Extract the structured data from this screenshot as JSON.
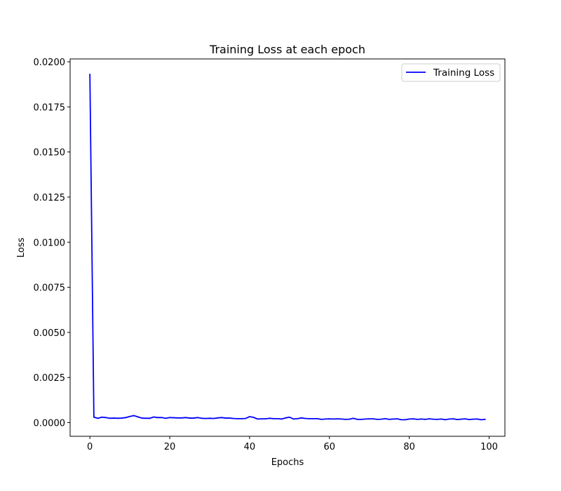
{
  "chart_data": {
    "type": "line",
    "title": "Training Loss at each epoch",
    "xlabel": "Epochs",
    "ylabel": "Loss",
    "xlim": [
      -4.95,
      103.95
    ],
    "ylim": [
      -0.000758,
      0.020158
    ],
    "xticks": [
      0,
      20,
      40,
      60,
      80,
      100
    ],
    "xtick_labels": [
      "0",
      "20",
      "40",
      "60",
      "80",
      "100"
    ],
    "yticks": [
      0.0,
      0.0025,
      0.005,
      0.0075,
      0.01,
      0.0125,
      0.015,
      0.0175,
      0.02
    ],
    "ytick_labels": [
      "0.0000",
      "0.0025",
      "0.0050",
      "0.0075",
      "0.0100",
      "0.0125",
      "0.0150",
      "0.0175",
      "0.0200"
    ],
    "grid": false,
    "legend_position": "top-right",
    "series": [
      {
        "name": "Training Loss",
        "color": "#0000ff",
        "x": [
          0,
          1,
          2,
          3,
          4,
          5,
          6,
          7,
          8,
          9,
          10,
          11,
          12,
          13,
          14,
          15,
          16,
          17,
          18,
          19,
          20,
          21,
          22,
          23,
          24,
          25,
          26,
          27,
          28,
          29,
          30,
          31,
          32,
          33,
          34,
          35,
          36,
          37,
          38,
          39,
          40,
          41,
          42,
          43,
          44,
          45,
          46,
          47,
          48,
          49,
          50,
          51,
          52,
          53,
          54,
          55,
          56,
          57,
          58,
          59,
          60,
          61,
          62,
          63,
          64,
          65,
          66,
          67,
          68,
          69,
          70,
          71,
          72,
          73,
          74,
          75,
          76,
          77,
          78,
          79,
          80,
          81,
          82,
          83,
          84,
          85,
          86,
          87,
          88,
          89,
          90,
          91,
          92,
          93,
          94,
          95,
          96,
          97,
          98,
          99
        ],
        "values": [
          0.0193,
          0.0003,
          0.00024,
          0.0003,
          0.00028,
          0.00024,
          0.00025,
          0.00024,
          0.00025,
          0.00028,
          0.00034,
          0.00039,
          0.00032,
          0.00025,
          0.00024,
          0.00024,
          0.00031,
          0.00028,
          0.00028,
          0.00024,
          0.00028,
          0.00027,
          0.00026,
          0.00026,
          0.00028,
          0.00025,
          0.00025,
          0.00028,
          0.00024,
          0.00023,
          0.00024,
          0.00023,
          0.00026,
          0.00028,
          0.00025,
          0.00025,
          0.00023,
          0.00022,
          0.00022,
          0.00023,
          0.00033,
          0.00029,
          0.0002,
          0.00021,
          0.00021,
          0.00024,
          0.00022,
          0.00022,
          0.0002,
          0.00026,
          0.0003,
          0.0002,
          0.00022,
          0.00026,
          0.00023,
          0.00022,
          0.00022,
          0.00022,
          0.00018,
          0.0002,
          0.00021,
          0.0002,
          0.00021,
          0.0002,
          0.00018,
          0.00019,
          0.00024,
          0.00018,
          0.00018,
          0.0002,
          0.00021,
          0.00021,
          0.00018,
          0.00019,
          0.00022,
          0.00018,
          0.0002,
          0.00021,
          0.00016,
          0.00016,
          0.0002,
          0.00021,
          0.00018,
          0.0002,
          0.00018,
          0.00021,
          0.00019,
          0.00018,
          0.0002,
          0.00016,
          0.0002,
          0.00021,
          0.00017,
          0.00019,
          0.00021,
          0.00017,
          0.00019,
          0.0002,
          0.00016,
          0.00018
        ]
      }
    ]
  }
}
